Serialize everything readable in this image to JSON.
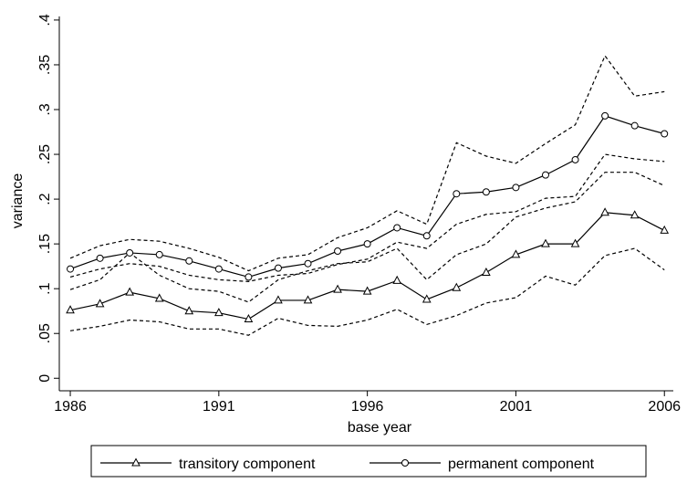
{
  "chart_data": {
    "type": "line",
    "xlabel": "base year",
    "ylabel": "variance",
    "x": [
      1986,
      1987,
      1988,
      1989,
      1990,
      1991,
      1992,
      1993,
      1994,
      1995,
      1996,
      1997,
      1998,
      1999,
      2000,
      2001,
      2002,
      2003,
      2004,
      2005,
      2006
    ],
    "series": [
      {
        "name": "transitory component",
        "color": "#000000",
        "marker": "triangle",
        "values": [
          0.076,
          0.083,
          0.096,
          0.089,
          0.075,
          0.073,
          0.066,
          0.087,
          0.087,
          0.099,
          0.097,
          0.109,
          0.088,
          0.101,
          0.118,
          0.138,
          0.15,
          0.15,
          0.185,
          0.182,
          0.165
        ],
        "lower": [
          0.053,
          0.058,
          0.065,
          0.063,
          0.055,
          0.055,
          0.048,
          0.067,
          0.059,
          0.058,
          0.065,
          0.077,
          0.06,
          0.07,
          0.084,
          0.09,
          0.114,
          0.104,
          0.137,
          0.145,
          0.121
        ],
        "upper": [
          0.099,
          0.11,
          0.14,
          0.115,
          0.1,
          0.097,
          0.085,
          0.11,
          0.12,
          0.128,
          0.13,
          0.145,
          0.11,
          0.138,
          0.15,
          0.18,
          0.19,
          0.197,
          0.23,
          0.23,
          0.215
        ]
      },
      {
        "name": "permanent component",
        "color": "#000000",
        "marker": "circle",
        "values": [
          0.122,
          0.134,
          0.14,
          0.138,
          0.131,
          0.122,
          0.113,
          0.123,
          0.128,
          0.142,
          0.15,
          0.168,
          0.159,
          0.206,
          0.208,
          0.213,
          0.227,
          0.244,
          0.293,
          0.282,
          0.273
        ],
        "lower": [
          0.113,
          0.122,
          0.128,
          0.125,
          0.115,
          0.11,
          0.108,
          0.115,
          0.117,
          0.127,
          0.133,
          0.152,
          0.145,
          0.172,
          0.183,
          0.186,
          0.201,
          0.203,
          0.25,
          0.245,
          0.242
        ],
        "upper": [
          0.134,
          0.148,
          0.155,
          0.153,
          0.145,
          0.135,
          0.12,
          0.134,
          0.138,
          0.157,
          0.168,
          0.187,
          0.172,
          0.263,
          0.248,
          0.24,
          0.262,
          0.283,
          0.36,
          0.315,
          0.32
        ]
      }
    ],
    "xlim": [
      1985.63,
      2006.3
    ],
    "xticks": [
      1986,
      1991,
      1996,
      2001,
      2006
    ],
    "ylim": [
      -0.014,
      0.404
    ],
    "yticks": [
      0,
      {
        "value": 0.05,
        "label": ".05"
      },
      {
        "value": 0.1,
        "label": ".1"
      },
      {
        "value": 0.15,
        "label": ".15"
      },
      {
        "value": 0.2,
        "label": ".2"
      },
      {
        "value": 0.25,
        "label": ".25"
      },
      {
        "value": 0.3,
        "label": ".3"
      },
      {
        "value": 0.35,
        "label": ".35"
      },
      {
        "value": 0.4,
        "label": ".4"
      }
    ],
    "grid": false
  }
}
